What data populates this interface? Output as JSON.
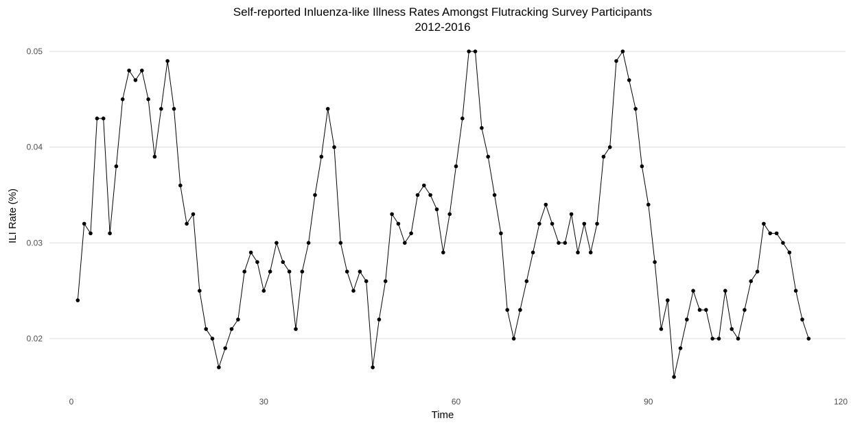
{
  "chart_data": {
    "type": "line",
    "title": "Self-reported Inluenza-like Illness Rates Amongst Flutracking Survey Participants",
    "subtitle": "2012-2016",
    "xlabel": "Time",
    "ylabel": "ILI Rate (%)",
    "xlim": [
      0,
      120
    ],
    "ylim": [
      0.015,
      0.05
    ],
    "x_ticks": [
      0,
      30,
      60,
      90,
      120
    ],
    "x_tick_labels": [
      "0",
      "30",
      "60",
      "90",
      "120"
    ],
    "y_ticks": [
      0.02,
      0.03,
      0.04,
      0.05
    ],
    "y_tick_labels": [
      "0.02",
      "0.03",
      "0.04",
      "0.05"
    ],
    "grid": "horizontal",
    "legend": "none",
    "colors": {
      "series": "#000000",
      "grid": "#d9d9d9"
    },
    "x": [
      1,
      2,
      3,
      4,
      5,
      6,
      7,
      8,
      9,
      10,
      11,
      12,
      13,
      14,
      15,
      16,
      17,
      18,
      19,
      20,
      21,
      22,
      23,
      24,
      25,
      26,
      27,
      28,
      29,
      30,
      31,
      32,
      33,
      34,
      35,
      36,
      37,
      38,
      39,
      40,
      41,
      42,
      43,
      44,
      45,
      46,
      47,
      48,
      49,
      50,
      51,
      52,
      53,
      54,
      55,
      56,
      57,
      58,
      59,
      60,
      61,
      62,
      63,
      64,
      65,
      66,
      67,
      68,
      69,
      70,
      71,
      72,
      73,
      74,
      75,
      76,
      77,
      78,
      79,
      80,
      81,
      82,
      83,
      84,
      85,
      86,
      87,
      88,
      89,
      90,
      91,
      92,
      93,
      94,
      95,
      96,
      97,
      98,
      99,
      100,
      101,
      102,
      103,
      104,
      105,
      106,
      107,
      108,
      109,
      110,
      111,
      112,
      113,
      114,
      115
    ],
    "values": [
      0.024,
      0.032,
      0.031,
      0.043,
      0.043,
      0.031,
      0.038,
      0.045,
      0.048,
      0.047,
      0.048,
      0.045,
      0.039,
      0.044,
      0.049,
      0.044,
      0.036,
      0.032,
      0.033,
      0.025,
      0.021,
      0.02,
      0.017,
      0.019,
      0.021,
      0.022,
      0.027,
      0.029,
      0.028,
      0.025,
      0.027,
      0.03,
      0.028,
      0.027,
      0.021,
      0.027,
      0.03,
      0.035,
      0.039,
      0.044,
      0.04,
      0.03,
      0.027,
      0.025,
      0.027,
      0.026,
      0.017,
      0.022,
      0.026,
      0.033,
      0.032,
      0.03,
      0.031,
      0.035,
      0.036,
      0.035,
      0.0335,
      0.029,
      0.033,
      0.038,
      0.043,
      0.05,
      0.05,
      0.042,
      0.039,
      0.035,
      0.031,
      0.023,
      0.02,
      0.023,
      0.026,
      0.029,
      0.032,
      0.034,
      0.032,
      0.03,
      0.03,
      0.033,
      0.029,
      0.032,
      0.029,
      0.032,
      0.039,
      0.04,
      0.049,
      0.05,
      0.047,
      0.044,
      0.038,
      0.034,
      0.028,
      0.021,
      0.024,
      0.016,
      0.019,
      0.022,
      0.025,
      0.023,
      0.023,
      0.02,
      0.02,
      0.025,
      0.021,
      0.02,
      0.023,
      0.026,
      0.027,
      0.032,
      0.031,
      0.031,
      0.03,
      0.029,
      0.025,
      0.022,
      0.02
    ]
  }
}
